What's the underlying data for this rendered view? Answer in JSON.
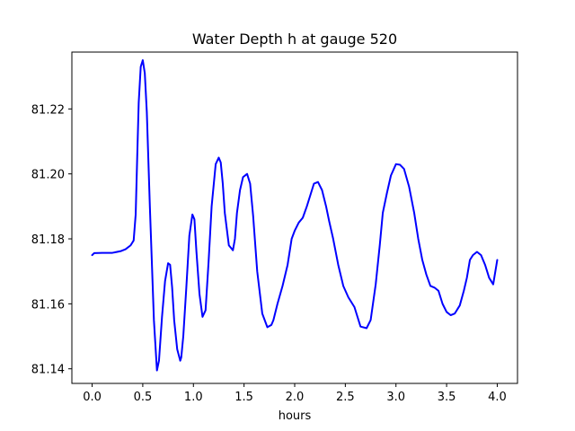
{
  "chart_data": {
    "type": "line",
    "title": "Water Depth h at gauge 520",
    "xlabel": "hours",
    "ylabel": "",
    "xlim": [
      -0.2,
      4.2
    ],
    "ylim": [
      81.1355,
      81.2375
    ],
    "grid": false,
    "x_ticks": [
      0.0,
      0.5,
      1.0,
      1.5,
      2.0,
      2.5,
      3.0,
      3.5,
      4.0
    ],
    "x_tick_labels": [
      "0.0",
      "0.5",
      "1.0",
      "1.5",
      "2.0",
      "2.5",
      "3.0",
      "3.5",
      "4.0"
    ],
    "y_ticks": [
      81.14,
      81.16,
      81.18,
      81.2,
      81.22
    ],
    "y_tick_labels": [
      "81.14",
      "81.16",
      "81.18",
      "81.20",
      "81.22"
    ],
    "series": [
      {
        "color": "#0000ff",
        "x": [
          0.0,
          0.02,
          0.1,
          0.2,
          0.28,
          0.33,
          0.38,
          0.41,
          0.43,
          0.445,
          0.46,
          0.48,
          0.5,
          0.52,
          0.54,
          0.57,
          0.61,
          0.64,
          0.66,
          0.69,
          0.72,
          0.75,
          0.77,
          0.79,
          0.81,
          0.84,
          0.87,
          0.88,
          0.9,
          0.93,
          0.96,
          0.99,
          1.01,
          1.03,
          1.06,
          1.09,
          1.12,
          1.15,
          1.18,
          1.22,
          1.25,
          1.27,
          1.29,
          1.31,
          1.35,
          1.39,
          1.41,
          1.43,
          1.46,
          1.49,
          1.53,
          1.56,
          1.59,
          1.63,
          1.68,
          1.73,
          1.77,
          1.79,
          1.83,
          1.88,
          1.93,
          1.97,
          2.0,
          2.04,
          2.08,
          2.12,
          2.16,
          2.19,
          2.23,
          2.27,
          2.31,
          2.34,
          2.38,
          2.43,
          2.48,
          2.53,
          2.59,
          2.65,
          2.71,
          2.75,
          2.8,
          2.84,
          2.87,
          2.91,
          2.95,
          3.0,
          3.04,
          3.08,
          3.13,
          3.18,
          3.22,
          3.26,
          3.3,
          3.34,
          3.38,
          3.42,
          3.46,
          3.5,
          3.54,
          3.58,
          3.63,
          3.67,
          3.7,
          3.73,
          3.76,
          3.8,
          3.84,
          3.88,
          3.92,
          3.96,
          4.0
        ],
        "y": [
          81.175,
          81.1756,
          81.1757,
          81.1757,
          81.1762,
          81.1768,
          81.178,
          81.1795,
          81.1875,
          81.205,
          81.222,
          81.233,
          81.235,
          81.231,
          81.219,
          81.19,
          81.155,
          81.1395,
          81.1425,
          81.156,
          81.167,
          81.1725,
          81.172,
          81.165,
          81.155,
          81.146,
          81.1425,
          81.1435,
          81.15,
          81.165,
          81.181,
          81.1875,
          81.186,
          81.176,
          81.163,
          81.156,
          81.158,
          81.173,
          81.19,
          81.203,
          81.205,
          81.2035,
          81.197,
          81.188,
          81.178,
          81.1765,
          81.18,
          81.188,
          81.195,
          81.199,
          81.2,
          81.197,
          81.187,
          81.17,
          81.157,
          81.1528,
          81.1535,
          81.155,
          81.16,
          81.1655,
          81.172,
          81.18,
          81.1825,
          81.185,
          81.1865,
          81.19,
          81.194,
          81.197,
          81.1975,
          81.195,
          81.19,
          81.1855,
          81.18,
          81.172,
          81.1655,
          81.162,
          81.159,
          81.153,
          81.1525,
          81.155,
          81.166,
          81.178,
          81.188,
          81.194,
          81.1995,
          81.203,
          81.2028,
          81.2015,
          81.196,
          81.188,
          81.18,
          81.1735,
          81.169,
          81.1655,
          81.165,
          81.164,
          81.16,
          81.1575,
          81.1565,
          81.157,
          81.1595,
          81.164,
          81.168,
          81.1735,
          81.175,
          81.176,
          81.175,
          81.172,
          81.168,
          81.166,
          81.1735
        ]
      }
    ]
  }
}
